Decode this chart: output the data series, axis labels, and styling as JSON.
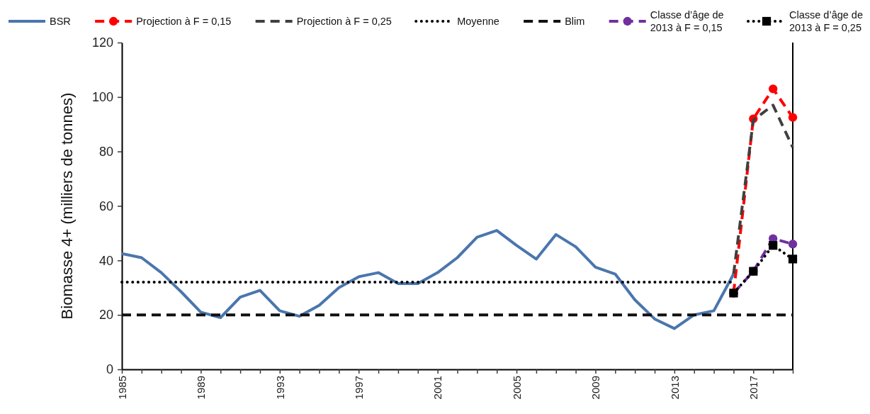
{
  "chart_data": {
    "type": "line",
    "ylabel": "Biomasse 4+ (milliers de tonnes)",
    "xlim": [
      1985,
      2019
    ],
    "xticks": [
      1985,
      {
        "value": 1986,
        "label": null
      },
      {
        "value": 1987,
        "label": null
      },
      {
        "value": 1988,
        "label": null
      },
      1989,
      {
        "value": 1990,
        "label": null
      },
      {
        "value": 1991,
        "label": null
      },
      {
        "value": 1992,
        "label": null
      },
      1993,
      {
        "value": 1994,
        "label": null
      },
      {
        "value": 1995,
        "label": null
      },
      {
        "value": 1996,
        "label": null
      },
      1997,
      {
        "value": 1998,
        "label": null
      },
      {
        "value": 1999,
        "label": null
      },
      {
        "value": 2000,
        "label": null
      },
      2001,
      {
        "value": 2002,
        "label": null
      },
      {
        "value": 2003,
        "label": null
      },
      {
        "value": 2004,
        "label": null
      },
      2005,
      {
        "value": 2006,
        "label": null
      },
      {
        "value": 2007,
        "label": null
      },
      {
        "value": 2008,
        "label": null
      },
      2009,
      {
        "value": 2010,
        "label": null
      },
      {
        "value": 2011,
        "label": null
      },
      {
        "value": 2012,
        "label": null
      },
      2013,
      {
        "value": 2014,
        "label": null
      },
      {
        "value": 2015,
        "label": null
      },
      {
        "value": 2016,
        "label": null
      },
      2017,
      {
        "value": 2018,
        "label": null
      },
      {
        "value": 2019,
        "label": null
      }
    ],
    "ylim": [
      0,
      120
    ],
    "yticks": [
      0,
      20,
      40,
      60,
      80,
      100,
      120
    ],
    "legend": "top",
    "series": [
      {
        "name": "BSR",
        "color": "#4a76ad",
        "line_style": "solid",
        "marker": "none",
        "x": [
          1985,
          1986,
          1987,
          1988,
          1989,
          1990,
          1991,
          1992,
          1993,
          1994,
          1995,
          1996,
          1997,
          1998,
          1999,
          2000,
          2001,
          2002,
          2003,
          2004,
          2005,
          2006,
          2007,
          2008,
          2009,
          2010,
          2011,
          2012,
          2013,
          2014,
          2015,
          2016
        ],
        "values": [
          42.5,
          41,
          35.5,
          28.5,
          21,
          19,
          26.5,
          29,
          21.5,
          19.5,
          23.5,
          30,
          34,
          35.5,
          31.5,
          31.5,
          35.5,
          41,
          48.5,
          51,
          45.5,
          40.5,
          49.5,
          45,
          37.5,
          35,
          25.5,
          18.5,
          15,
          20,
          21.5,
          35
        ]
      },
      {
        "name": "Projection à F = 0,15",
        "color": "#ff0000",
        "line_style": "dashed",
        "marker": "circle",
        "x": [
          2016,
          2017,
          2018,
          2019
        ],
        "values": [
          28,
          92,
          103,
          92.5
        ]
      },
      {
        "name": "Projection à F = 0,25",
        "color": "#404040",
        "line_style": "dashed",
        "marker": "none",
        "x": [
          2016,
          2017,
          2018,
          2019
        ],
        "values": [
          35,
          91.5,
          97,
          81.5
        ]
      },
      {
        "name": "Moyenne",
        "color": "#000000",
        "line_style": "dotted",
        "marker": "none",
        "x": [
          1985,
          2016
        ],
        "values": [
          32,
          32
        ]
      },
      {
        "name": "Blim",
        "color": "#111111",
        "line_style": "dashed",
        "marker": "none",
        "x": [
          1985,
          2019
        ],
        "values": [
          20,
          20
        ]
      },
      {
        "name": "Classe d’âge de 2013 à F = 0,15",
        "color": "#7030a0",
        "line_style": "dashed",
        "marker": "circle",
        "x": [
          2016,
          2017,
          2018,
          2019
        ],
        "values": [
          28,
          36,
          48,
          46
        ]
      },
      {
        "name": "Classe d’âge de 2013 à F = 0,25",
        "color": "#000000",
        "line_style": "dotted",
        "marker": "square",
        "x": [
          2016,
          2017,
          2018,
          2019
        ],
        "values": [
          28,
          36,
          45.5,
          40.5
        ]
      }
    ]
  }
}
